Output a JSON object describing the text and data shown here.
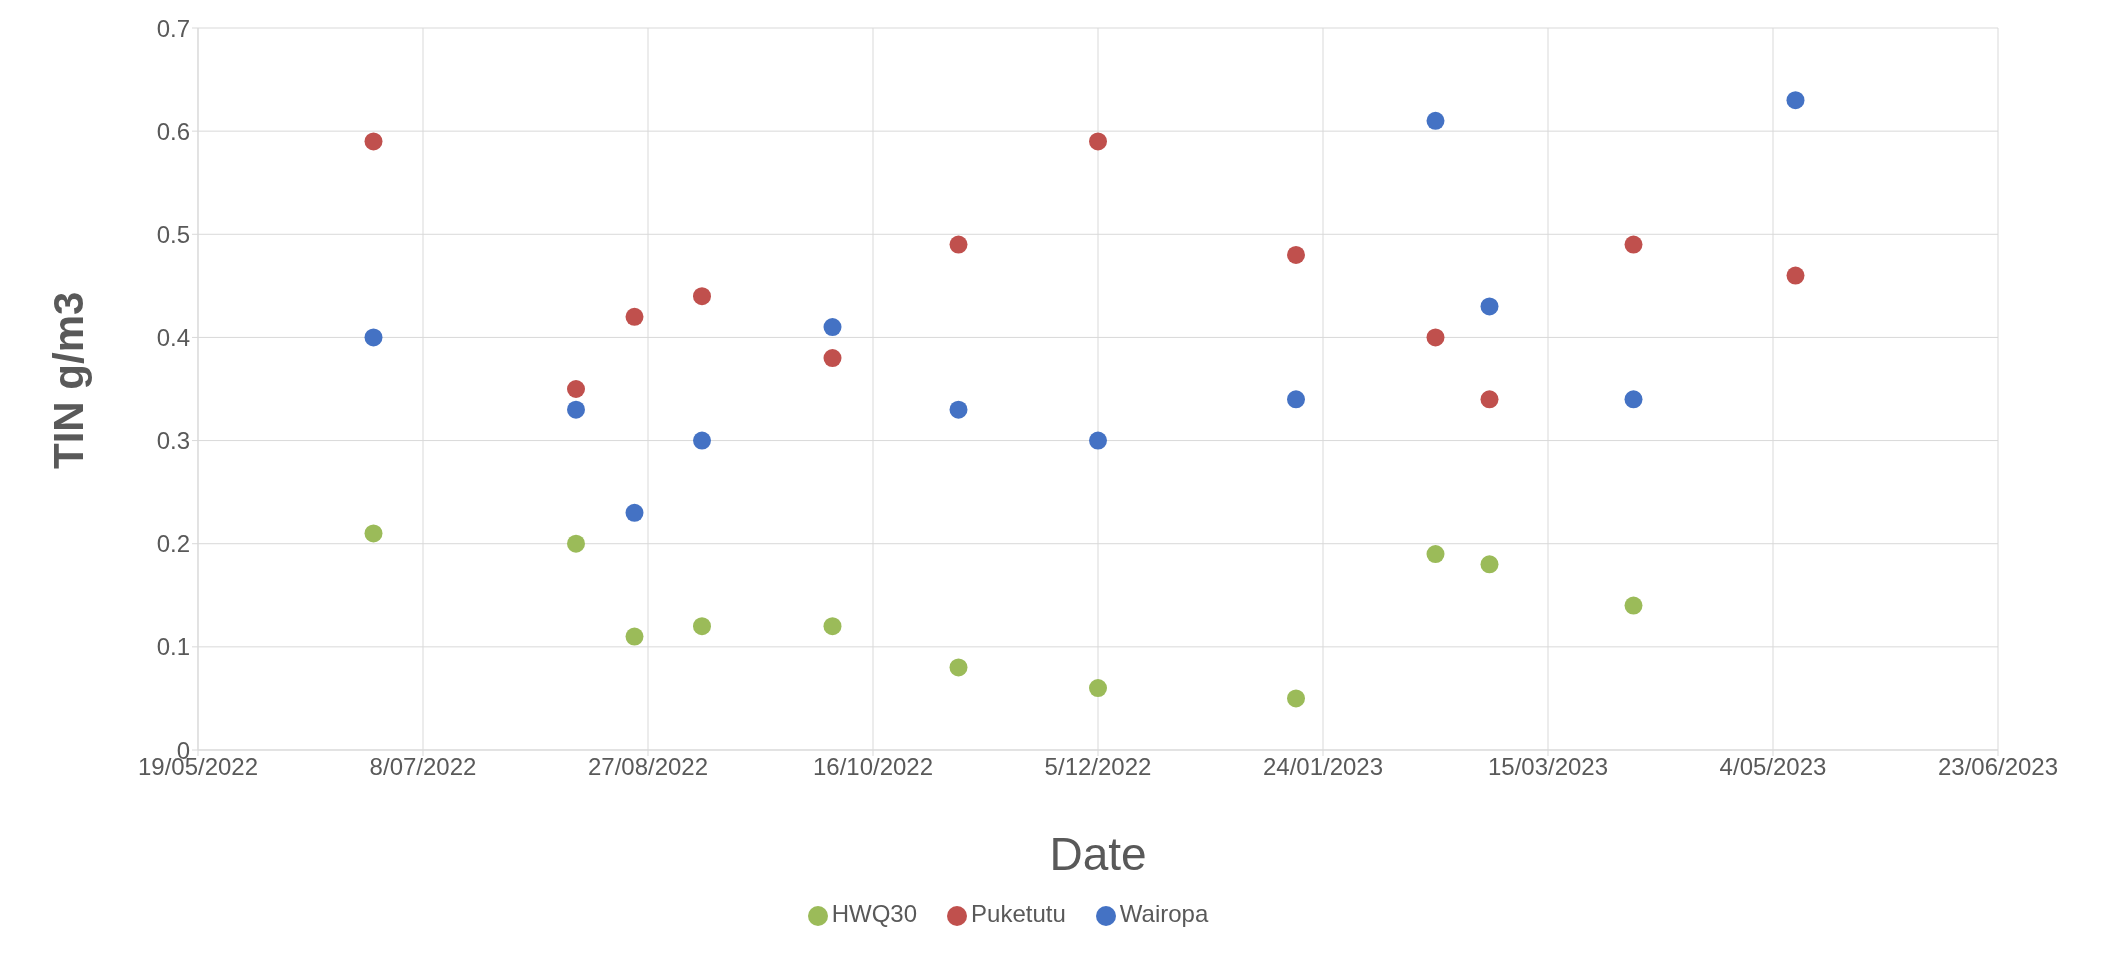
{
  "chart_data": {
    "type": "scatter",
    "xlabel": "Date",
    "ylabel": "TIN g/m3",
    "x": [
      "2022-06-27",
      "2022-08-11",
      "2022-08-24",
      "2022-09-08",
      "2022-10-07",
      "2022-11-04",
      "2022-12-05",
      "2023-01-18",
      "2023-02-18",
      "2023-03-02",
      "2023-04-03",
      "2023-05-09"
    ],
    "series": [
      {
        "name": "Wairopa",
        "color": "#4472c4",
        "values": [
          0.4,
          0.33,
          0.23,
          0.3,
          0.41,
          0.33,
          0.3,
          0.34,
          0.61,
          0.43,
          0.34,
          0.63
        ]
      },
      {
        "name": "Puketutu",
        "color": "#c0504d",
        "values": [
          0.59,
          0.35,
          0.42,
          0.44,
          0.38,
          0.49,
          0.59,
          0.48,
          0.4,
          0.34,
          0.49,
          0.46
        ]
      },
      {
        "name": "HWQ30",
        "color": "#9bbb59",
        "values": [
          0.21,
          0.2,
          0.11,
          0.12,
          0.12,
          0.08,
          0.06,
          0.05,
          0.19,
          0.18,
          0.14,
          null
        ]
      }
    ],
    "xlim": [
      "2022-05-19",
      "2023-06-23"
    ],
    "xticks": [
      {
        "value": "2022-05-19",
        "label": "19/05/2022"
      },
      {
        "value": "2022-07-08",
        "label": "8/07/2022"
      },
      {
        "value": "2022-08-27",
        "label": "27/08/2022"
      },
      {
        "value": "2022-10-16",
        "label": "16/10/2022"
      },
      {
        "value": "2022-12-05",
        "label": "5/12/2022"
      },
      {
        "value": "2023-01-24",
        "label": "24/01/2023"
      },
      {
        "value": "2023-03-15",
        "label": "15/03/2023"
      },
      {
        "value": "2023-05-04",
        "label": "4/05/2023"
      },
      {
        "value": "2023-06-23",
        "label": "23/06/2023"
      }
    ],
    "ylim": [
      0,
      0.7
    ],
    "yticks": [
      0,
      0.1,
      0.2,
      0.3,
      0.4,
      0.5,
      0.6,
      0.7
    ],
    "grid": true,
    "legend": "bottom",
    "marker": "circle"
  }
}
